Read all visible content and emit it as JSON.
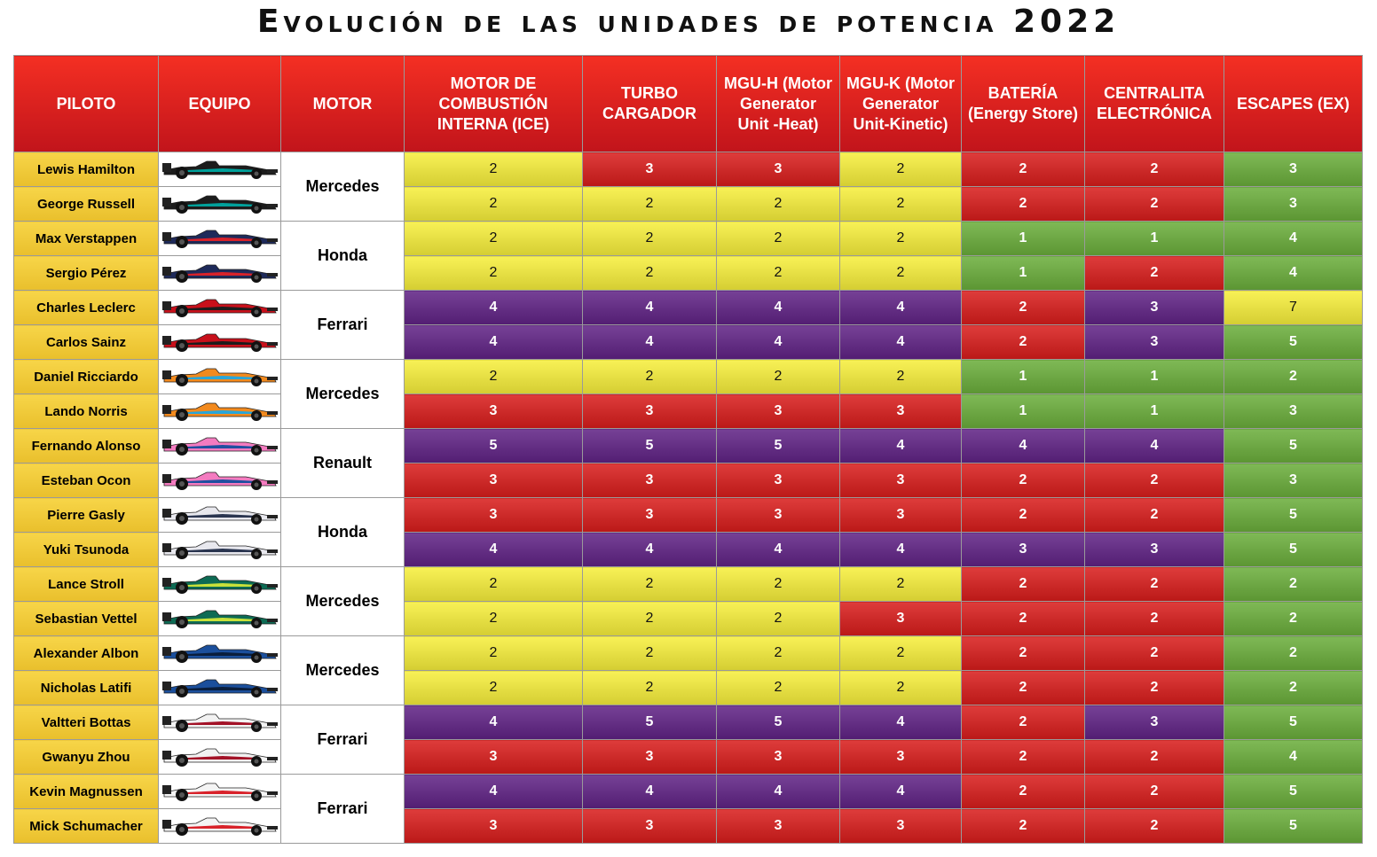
{
  "header": {
    "title": "Evolución de las unidades de potencia 2022"
  },
  "table": {
    "headers": [
      "PILOTO",
      "EQUIPO",
      "MOTOR",
      "MOTOR DE COMBUSTIÓN INTERNA (ICE)",
      "TURBO CARGADOR",
      "MGU-H (Motor Generator Unit -Heat)",
      "MGU-K (Motor Generator Unit-Kinetic)",
      "BATERÍA (Energy Store)",
      "CENTRALITA ELECTRÓNICA",
      "ESCAPES (EX)"
    ],
    "groups": [
      {
        "motor": "Mercedes",
        "livery": [
          "#1c1c1c",
          "#00a19b"
        ],
        "drivers": [
          {
            "name": "Lewis Hamilton",
            "values": [
              2,
              3,
              3,
              2,
              2,
              2,
              3
            ],
            "colors": [
              "#f7ef3a",
              "#d81c1b",
              "#d81c1b",
              "#f7ef3a",
              "#d81c1b",
              "#d81c1b",
              "#6aae3a"
            ]
          },
          {
            "name": "George Russell",
            "values": [
              2,
              2,
              2,
              2,
              2,
              2,
              3
            ],
            "colors": [
              "#f7ef3a",
              "#f7ef3a",
              "#f7ef3a",
              "#f7ef3a",
              "#d81c1b",
              "#d81c1b",
              "#6aae3a"
            ]
          }
        ]
      },
      {
        "motor": "Honda",
        "livery": [
          "#1e2a5a",
          "#d8222a"
        ],
        "drivers": [
          {
            "name": "Max Verstappen",
            "values": [
              2,
              2,
              2,
              2,
              1,
              1,
              4
            ],
            "colors": [
              "#f7ef3a",
              "#f7ef3a",
              "#f7ef3a",
              "#f7ef3a",
              "#6aae3a",
              "#6aae3a",
              "#6aae3a"
            ]
          },
          {
            "name": "Sergio Pérez",
            "values": [
              2,
              2,
              2,
              2,
              1,
              2,
              4
            ],
            "colors": [
              "#f7ef3a",
              "#f7ef3a",
              "#f7ef3a",
              "#f7ef3a",
              "#6aae3a",
              "#d81c1b",
              "#6aae3a"
            ]
          }
        ]
      },
      {
        "motor": "Ferrari",
        "livery": [
          "#c8101b",
          "#1c1c1c"
        ],
        "drivers": [
          {
            "name": "Charles Leclerc",
            "values": [
              4,
              4,
              4,
              4,
              2,
              3,
              7
            ],
            "colors": [
              "#5f2285",
              "#5f2285",
              "#5f2285",
              "#5f2285",
              "#d81c1b",
              "#5f2285",
              "#f7ef3a"
            ]
          },
          {
            "name": "Carlos Sainz",
            "values": [
              4,
              4,
              4,
              4,
              2,
              3,
              5
            ],
            "colors": [
              "#5f2285",
              "#5f2285",
              "#5f2285",
              "#5f2285",
              "#d81c1b",
              "#5f2285",
              "#6aae3a"
            ]
          }
        ]
      },
      {
        "motor": "Mercedes",
        "livery": [
          "#f28a1e",
          "#2aa6d8"
        ],
        "drivers": [
          {
            "name": "Daniel Ricciardo",
            "values": [
              2,
              2,
              2,
              2,
              1,
              1,
              2
            ],
            "colors": [
              "#f7ef3a",
              "#f7ef3a",
              "#f7ef3a",
              "#f7ef3a",
              "#6aae3a",
              "#6aae3a",
              "#6aae3a"
            ]
          },
          {
            "name": "Lando Norris",
            "values": [
              3,
              3,
              3,
              3,
              1,
              1,
              3
            ],
            "colors": [
              "#d81c1b",
              "#d81c1b",
              "#d81c1b",
              "#d81c1b",
              "#6aae3a",
              "#6aae3a",
              "#6aae3a"
            ]
          }
        ]
      },
      {
        "motor": "Renault",
        "livery": [
          "#f47bc0",
          "#1f4fa0"
        ],
        "drivers": [
          {
            "name": "Fernando Alonso",
            "values": [
              5,
              5,
              5,
              4,
              4,
              4,
              5
            ],
            "colors": [
              "#5f2285",
              "#5f2285",
              "#5f2285",
              "#5f2285",
              "#5f2285",
              "#5f2285",
              "#6aae3a"
            ]
          },
          {
            "name": "Esteban Ocon",
            "values": [
              3,
              3,
              3,
              3,
              2,
              2,
              3
            ],
            "colors": [
              "#d81c1b",
              "#d81c1b",
              "#d81c1b",
              "#d81c1b",
              "#d81c1b",
              "#d81c1b",
              "#6aae3a"
            ]
          }
        ]
      },
      {
        "motor": "Honda",
        "livery": [
          "#e8e8ee",
          "#2a3550"
        ],
        "drivers": [
          {
            "name": "Pierre Gasly",
            "values": [
              3,
              3,
              3,
              3,
              2,
              2,
              5
            ],
            "colors": [
              "#d81c1b",
              "#d81c1b",
              "#d81c1b",
              "#d81c1b",
              "#d81c1b",
              "#d81c1b",
              "#6aae3a"
            ]
          },
          {
            "name": "Yuki Tsunoda",
            "values": [
              4,
              4,
              4,
              4,
              3,
              3,
              5
            ],
            "colors": [
              "#5f2285",
              "#5f2285",
              "#5f2285",
              "#5f2285",
              "#5f2285",
              "#5f2285",
              "#6aae3a"
            ]
          }
        ]
      },
      {
        "motor": "Mercedes",
        "livery": [
          "#0d6b54",
          "#c8e03a"
        ],
        "drivers": [
          {
            "name": "Lance Stroll",
            "values": [
              2,
              2,
              2,
              2,
              2,
              2,
              2
            ],
            "colors": [
              "#f7ef3a",
              "#f7ef3a",
              "#f7ef3a",
              "#f7ef3a",
              "#d81c1b",
              "#d81c1b",
              "#6aae3a"
            ]
          },
          {
            "name": "Sebastian Vettel",
            "values": [
              2,
              2,
              2,
              3,
              2,
              2,
              2
            ],
            "colors": [
              "#f7ef3a",
              "#f7ef3a",
              "#f7ef3a",
              "#d81c1b",
              "#d81c1b",
              "#d81c1b",
              "#6aae3a"
            ]
          }
        ]
      },
      {
        "motor": "Mercedes",
        "livery": [
          "#1b4f9c",
          "#0a1e3c"
        ],
        "drivers": [
          {
            "name": "Alexander Albon",
            "values": [
              2,
              2,
              2,
              2,
              2,
              2,
              2
            ],
            "colors": [
              "#f7ef3a",
              "#f7ef3a",
              "#f7ef3a",
              "#f7ef3a",
              "#d81c1b",
              "#d81c1b",
              "#6aae3a"
            ]
          },
          {
            "name": "Nicholas Latifi",
            "values": [
              2,
              2,
              2,
              2,
              2,
              2,
              2
            ],
            "colors": [
              "#f7ef3a",
              "#f7ef3a",
              "#f7ef3a",
              "#f7ef3a",
              "#d81c1b",
              "#d81c1b",
              "#6aae3a"
            ]
          }
        ]
      },
      {
        "motor": "Ferrari",
        "livery": [
          "#f2f2f2",
          "#a31227"
        ],
        "drivers": [
          {
            "name": "Valtteri Bottas",
            "values": [
              4,
              5,
              5,
              4,
              2,
              3,
              5
            ],
            "colors": [
              "#5f2285",
              "#5f2285",
              "#5f2285",
              "#5f2285",
              "#d81c1b",
              "#5f2285",
              "#6aae3a"
            ]
          },
          {
            "name": "Gwanyu Zhou",
            "values": [
              3,
              3,
              3,
              3,
              2,
              2,
              4
            ],
            "colors": [
              "#d81c1b",
              "#d81c1b",
              "#d81c1b",
              "#d81c1b",
              "#d81c1b",
              "#d81c1b",
              "#6aae3a"
            ]
          }
        ]
      },
      {
        "motor": "Ferrari",
        "livery": [
          "#f4f4f4",
          "#d8222a"
        ],
        "drivers": [
          {
            "name": "Kevin Magnussen",
            "values": [
              4,
              4,
              4,
              4,
              2,
              2,
              5
            ],
            "colors": [
              "#5f2285",
              "#5f2285",
              "#5f2285",
              "#5f2285",
              "#d81c1b",
              "#d81c1b",
              "#6aae3a"
            ]
          },
          {
            "name": "Mick Schumacher",
            "values": [
              3,
              3,
              3,
              3,
              2,
              2,
              5
            ],
            "colors": [
              "#d81c1b",
              "#d81c1b",
              "#d81c1b",
              "#d81c1b",
              "#d81c1b",
              "#d81c1b",
              "#6aae3a"
            ]
          }
        ]
      }
    ]
  }
}
